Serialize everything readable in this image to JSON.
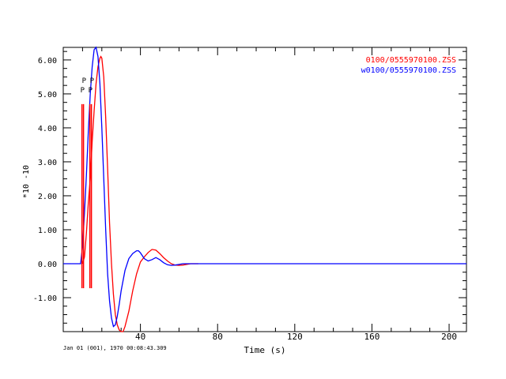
{
  "chart_data": {
    "type": "line",
    "xlabel": "Time (s)",
    "ylabel": "*10 -10",
    "xlim": [
      0,
      209
    ],
    "ylim": [
      -2.0,
      6.37
    ],
    "xticks": [
      {
        "v": 40,
        "label": "40"
      },
      {
        "v": 80,
        "label": "80"
      },
      {
        "v": 120,
        "label": "120"
      },
      {
        "v": 160,
        "label": "160"
      },
      {
        "v": 200,
        "label": "200"
      }
    ],
    "yticks": [
      {
        "v": -1,
        "label": "-1.00"
      },
      {
        "v": 0,
        "label": "0.00"
      },
      {
        "v": 1,
        "label": "1.00"
      },
      {
        "v": 2,
        "label": "2.00"
      },
      {
        "v": 3,
        "label": "3.00"
      },
      {
        "v": 4,
        "label": "4.00"
      },
      {
        "v": 5,
        "label": "5.00"
      },
      {
        "v": 6,
        "label": "6.00"
      }
    ],
    "footer": "Jan 01 (001), 1970 00:08:43.309",
    "series": [
      {
        "name": "0100/0555970100.ZSS",
        "color": "#ff0000",
        "x": [
          10,
          11,
          12,
          13,
          14,
          15,
          16,
          17,
          18,
          19,
          19.5,
          20,
          21,
          22,
          23,
          24,
          25,
          26,
          27,
          28,
          29,
          30,
          31,
          32,
          34,
          36,
          38,
          40,
          42,
          44,
          46,
          48,
          50,
          52,
          54,
          56,
          58,
          60,
          62,
          66,
          70
        ],
        "y": [
          0,
          0.2,
          0.9,
          1.8,
          2.5,
          3.6,
          4.5,
          5.3,
          5.8,
          6.05,
          6.1,
          6.05,
          5.5,
          4.3,
          2.8,
          1.2,
          0,
          -0.9,
          -1.5,
          -1.8,
          -1.95,
          -2.0,
          -2.0,
          -1.85,
          -1.4,
          -0.8,
          -0.3,
          0.05,
          0.2,
          0.33,
          0.42,
          0.4,
          0.3,
          0.18,
          0.08,
          0,
          -0.04,
          -0.05,
          -0.04,
          0,
          0
        ]
      },
      {
        "name": "w0100/0555970100.ZSS",
        "color": "#0000ff",
        "x": [
          0,
          9,
          10,
          11,
          12,
          13,
          14,
          15,
          16,
          17,
          18,
          19,
          20,
          21,
          22,
          23,
          24,
          25,
          26,
          27,
          28,
          29,
          30,
          32,
          34,
          36,
          38,
          39,
          40,
          42,
          44,
          46,
          48,
          50,
          52,
          54,
          56,
          58,
          60,
          62,
          66,
          70,
          209
        ],
        "y": [
          0,
          0,
          0.5,
          1.5,
          2.6,
          3.9,
          5.0,
          5.8,
          6.3,
          6.37,
          6.1,
          5.3,
          4.0,
          2.5,
          1.0,
          -0.3,
          -1.1,
          -1.6,
          -1.85,
          -1.8,
          -1.55,
          -1.2,
          -0.8,
          -0.2,
          0.15,
          0.3,
          0.38,
          0.38,
          0.32,
          0.15,
          0.08,
          0.12,
          0.18,
          0.12,
          0.03,
          -0.03,
          -0.05,
          -0.04,
          -0.02,
          0,
          0,
          0,
          0
        ]
      }
    ],
    "picks": [
      {
        "t": 9.7,
        "label": "P",
        "color": "#ff0000"
      },
      {
        "t": 10.5,
        "label": "P",
        "color": "#ff0000"
      },
      {
        "t": 13.8,
        "label": "P",
        "color": "#ff0000"
      },
      {
        "t": 14.6,
        "label": "P",
        "color": "#ff0000"
      }
    ],
    "legend_position": "top-right"
  }
}
